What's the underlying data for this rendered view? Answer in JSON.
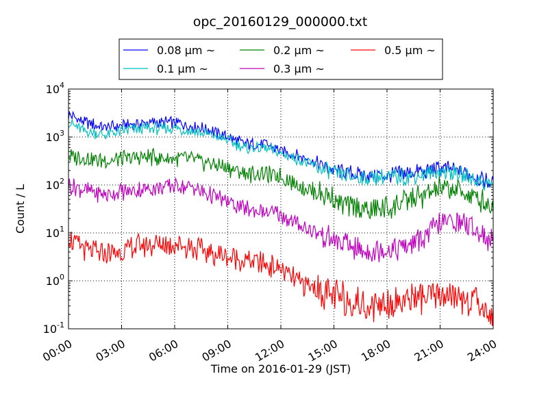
{
  "chart_data": {
    "type": "line",
    "title": "opc_20160129_000000.txt",
    "xlabel": "Time on 2016-01-29 (JST)",
    "ylabel": "Count / L",
    "xlim": [
      0,
      24
    ],
    "ylim": [
      0.1,
      10000
    ],
    "yscale": "log",
    "grid": true,
    "legend_position": "top-center",
    "x_unit": "hours",
    "x_ticks": [
      0,
      3,
      6,
      9,
      12,
      15,
      18,
      21,
      24
    ],
    "x_tick_labels": [
      "00:00",
      "03:00",
      "06:00",
      "09:00",
      "12:00",
      "15:00",
      "18:00",
      "21:00",
      "24:00"
    ],
    "y_ticks": [
      0.1,
      1,
      10,
      100,
      1000,
      10000
    ],
    "y_tick_labels": [
      {
        "base": "10",
        "exp": "-1"
      },
      {
        "base": "10",
        "exp": "0"
      },
      {
        "base": "10",
        "exp": "1"
      },
      {
        "base": "10",
        "exp": "2"
      },
      {
        "base": "10",
        "exp": "3"
      },
      {
        "base": "10",
        "exp": "4"
      }
    ],
    "x": [
      0,
      1,
      2,
      3,
      4,
      5,
      6,
      7,
      8,
      9,
      10,
      11,
      12,
      13,
      14,
      15,
      16,
      17,
      18,
      19,
      20,
      21,
      22,
      23,
      24
    ],
    "series": [
      {
        "name": "0.08 μm ~",
        "color": "#0000ff",
        "values": [
          2900,
          2000,
          1600,
          1700,
          1900,
          2000,
          2000,
          1700,
          1400,
          1000,
          700,
          750,
          520,
          400,
          280,
          200,
          170,
          160,
          160,
          180,
          190,
          220,
          200,
          150,
          110
        ]
      },
      {
        "name": "0.1 μm ~",
        "color": "#00bfbf",
        "values": [
          2000,
          1300,
          1100,
          1300,
          1500,
          1500,
          1500,
          1350,
          1100,
          850,
          580,
          600,
          450,
          340,
          240,
          170,
          150,
          140,
          140,
          150,
          160,
          190,
          170,
          130,
          100
        ]
      },
      {
        "name": "0.2 μm ~",
        "color": "#008000",
        "values": [
          400,
          360,
          330,
          340,
          380,
          370,
          360,
          330,
          280,
          230,
          170,
          170,
          150,
          100,
          70,
          50,
          35,
          30,
          32,
          45,
          60,
          80,
          80,
          55,
          35
        ]
      },
      {
        "name": "0.3 μm ~",
        "color": "#bf00bf",
        "values": [
          100,
          75,
          62,
          70,
          80,
          85,
          100,
          90,
          60,
          45,
          32,
          28,
          24,
          15,
          10,
          7,
          5,
          4,
          4.5,
          5,
          8,
          16,
          18,
          12,
          6
        ]
      },
      {
        "name": "0.5 μm ~",
        "color": "#ff0000",
        "values": [
          7.5,
          4.5,
          3.5,
          4.2,
          5.5,
          5.5,
          6,
          5,
          3.8,
          3.2,
          2.6,
          2.3,
          1.8,
          0.9,
          0.7,
          0.5,
          0.35,
          0.32,
          0.35,
          0.4,
          0.45,
          0.5,
          0.45,
          0.35,
          0.2
        ]
      }
    ]
  }
}
